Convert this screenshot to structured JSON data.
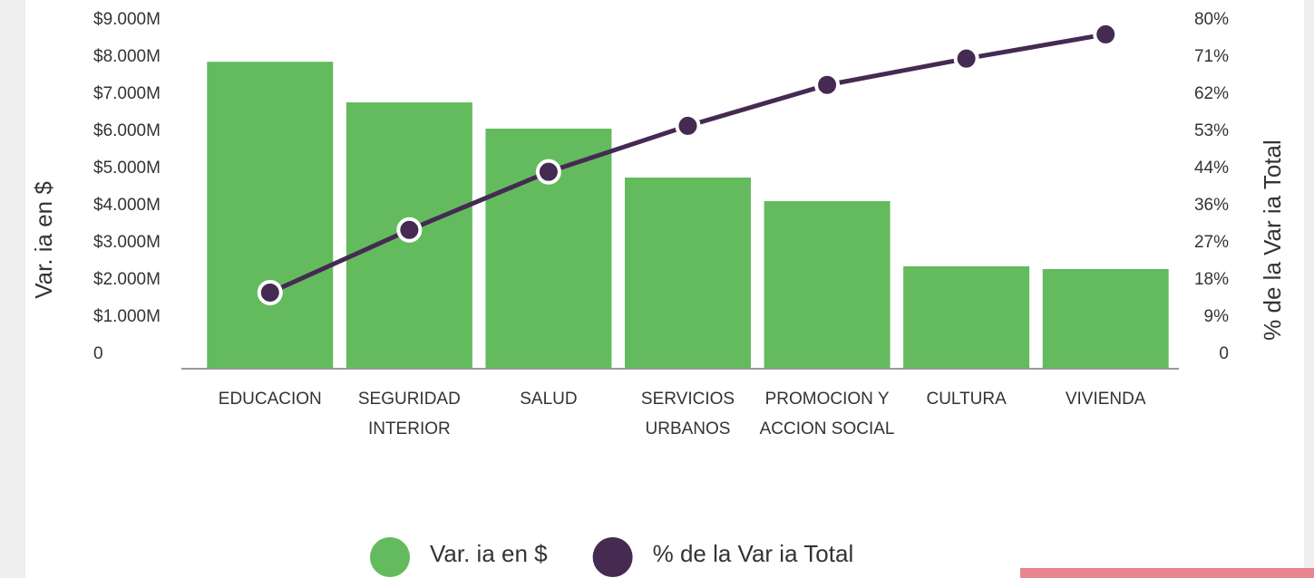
{
  "chart_data": {
    "type": "bar",
    "categories": [
      "EDUCACION",
      "SEGURIDAD INTERIOR",
      "SALUD",
      "SERVICIOS URBANOS",
      "PROMOCION Y ACCION SOCIAL",
      "CULTURA",
      "VIVIENDA"
    ],
    "series": [
      {
        "name": "Var. ia en $",
        "type": "bar",
        "color": "#63bb5e",
        "values": [
          8240,
          7146,
          6439,
          5122,
          4488,
          2732,
          2659
        ]
      },
      {
        "name": "% de la Var ia Total",
        "type": "line",
        "axis": "y2",
        "color": "#452a52",
        "values": [
          18.0,
          33.0,
          46.9,
          57.9,
          67.7,
          74.0,
          79.8
        ]
      }
    ],
    "ylabel": "Var. ia en $",
    "y2label": "% de la Var ia Total",
    "ylim": [
      0,
      9000
    ],
    "yticks": [
      0,
      {
        "value": 1000,
        "label": "$1.000M"
      },
      {
        "value": 2000,
        "label": "$2.000M"
      },
      {
        "value": 3000,
        "label": "$3.000M"
      },
      {
        "value": 4000,
        "label": "$4.000M"
      },
      {
        "value": 5000,
        "label": "$5.000M"
      },
      {
        "value": 6000,
        "label": "$6.000M"
      },
      {
        "value": 7000,
        "label": "$7.000M"
      },
      {
        "value": 8000,
        "label": "$8.000M"
      },
      {
        "value": 9000,
        "label": "$9.000M"
      }
    ],
    "y2lim": [
      0,
      80
    ],
    "y2ticks": [
      0,
      {
        "value": 8.89,
        "label": "9%"
      },
      {
        "value": 17.78,
        "label": "18%"
      },
      {
        "value": 26.67,
        "label": "27%"
      },
      {
        "value": 35.56,
        "label": "36%"
      },
      {
        "value": 44.44,
        "label": "44%"
      },
      {
        "value": 53.33,
        "label": "53%"
      },
      {
        "value": 62.22,
        "label": "62%"
      },
      {
        "value": 71.11,
        "label": "71%"
      },
      {
        "value": 80,
        "label": "80%"
      }
    ],
    "grid": false,
    "legend": "bottom"
  }
}
